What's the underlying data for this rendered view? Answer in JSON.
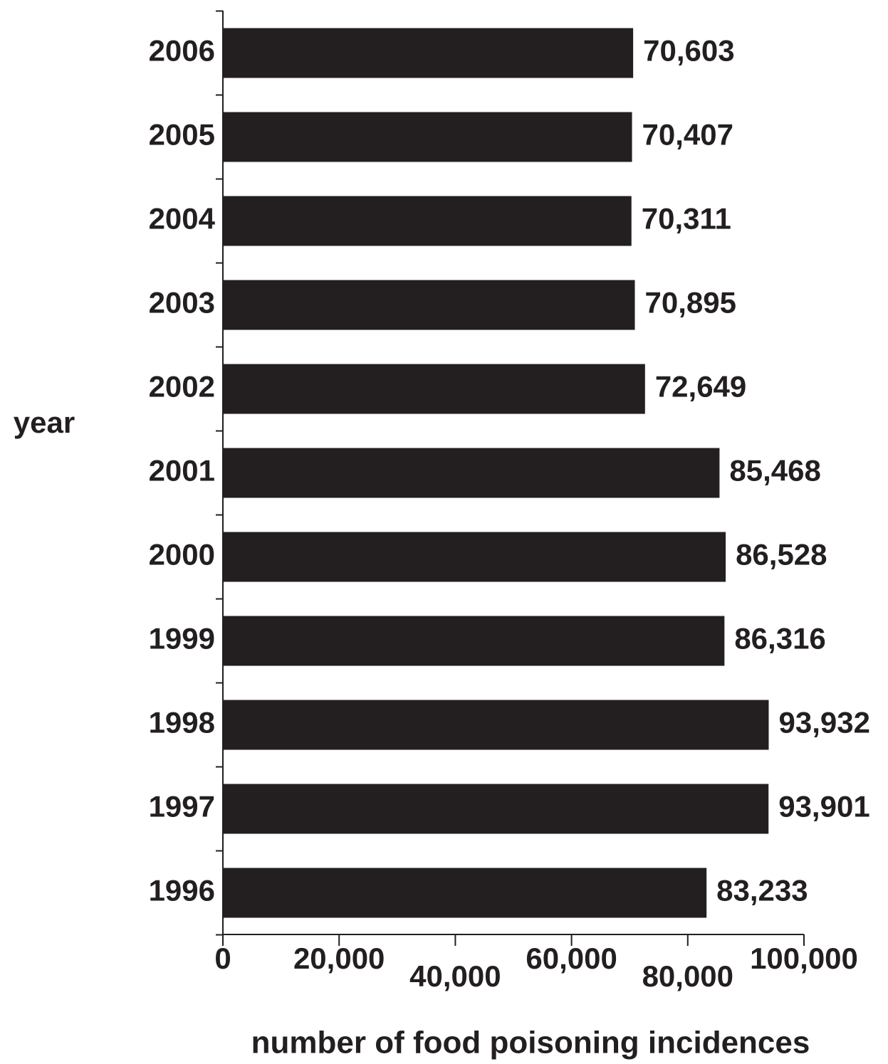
{
  "chart_data": {
    "type": "bar",
    "orientation": "horizontal",
    "categories": [
      "2006",
      "2005",
      "2004",
      "2003",
      "2002",
      "2001",
      "2000",
      "1999",
      "1998",
      "1997",
      "1996"
    ],
    "values": [
      70603,
      70407,
      70311,
      70895,
      72649,
      85468,
      86528,
      86316,
      93932,
      93901,
      83233
    ],
    "value_labels": [
      "70,603",
      "70,407",
      "70,311",
      "70,895",
      "72,649",
      "85,468",
      "86,528",
      "86,316",
      "93,932",
      "93,901",
      "83,233"
    ],
    "xlabel": "number of food poisoning incidences",
    "ylabel": "year",
    "xlim": [
      0,
      100000
    ],
    "xticks": [
      0,
      20000,
      40000,
      60000,
      80000,
      100000
    ],
    "xtick_labels": [
      "0",
      "20,000",
      "40,000",
      "60,000",
      "80,000",
      "100,000"
    ],
    "grid": false,
    "bar_color": "#231f20",
    "text_color": "#231f20"
  }
}
